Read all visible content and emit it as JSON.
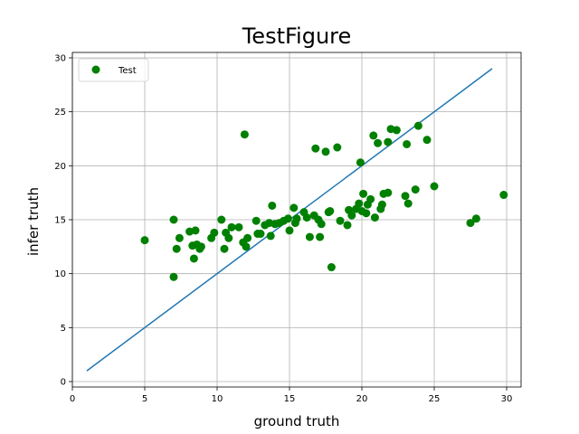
{
  "chart_data": {
    "type": "scatter",
    "title": "TestFigure",
    "xlabel": "ground truth",
    "ylabel": "infer truth",
    "xlim": [
      0,
      31
    ],
    "ylim": [
      -0.5,
      30.5
    ],
    "xticks": [
      0,
      5,
      10,
      15,
      20,
      25,
      30
    ],
    "yticks": [
      0,
      5,
      10,
      15,
      20,
      25,
      30
    ],
    "grid": true,
    "legend_position": "top-left",
    "colors": {
      "points": "#008000",
      "line": "#1f77b4",
      "grid": "#b0b0b0"
    },
    "reference_line": {
      "x": [
        1,
        29
      ],
      "y": [
        1,
        29
      ]
    },
    "series": [
      {
        "name": "Test",
        "x": [
          5.0,
          7.0,
          7.0,
          7.2,
          7.4,
          8.1,
          8.3,
          8.4,
          8.5,
          8.6,
          8.8,
          8.9,
          9.6,
          9.8,
          10.3,
          10.5,
          10.6,
          10.8,
          11.0,
          11.5,
          11.8,
          11.9,
          12.0,
          12.1,
          12.7,
          12.8,
          13.0,
          13.3,
          13.6,
          13.7,
          13.8,
          14.0,
          14.3,
          14.6,
          14.9,
          15.0,
          15.3,
          15.4,
          15.5,
          16.0,
          16.2,
          16.4,
          16.7,
          16.8,
          17.0,
          17.1,
          17.2,
          17.5,
          17.7,
          17.8,
          17.9,
          18.3,
          18.5,
          19.0,
          19.1,
          19.3,
          19.6,
          19.8,
          19.9,
          20.0,
          20.1,
          20.3,
          20.4,
          20.6,
          20.8,
          20.9,
          21.1,
          21.3,
          21.4,
          21.5,
          21.8,
          21.8,
          22.0,
          22.4,
          23.0,
          23.1,
          23.2,
          23.7,
          23.9,
          24.5,
          25.0,
          27.5,
          27.9,
          29.8
        ],
        "y": [
          13.1,
          15.0,
          9.7,
          12.3,
          13.3,
          13.9,
          12.6,
          11.4,
          14.0,
          12.7,
          12.3,
          12.5,
          13.3,
          13.8,
          15.0,
          12.3,
          13.8,
          13.3,
          14.3,
          14.3,
          12.9,
          22.9,
          12.5,
          13.3,
          14.9,
          13.7,
          13.7,
          14.5,
          14.7,
          13.5,
          16.3,
          14.6,
          14.7,
          14.9,
          15.1,
          14.0,
          16.1,
          14.7,
          15.1,
          15.7,
          15.2,
          13.4,
          15.4,
          21.6,
          15.0,
          13.4,
          14.6,
          21.3,
          15.7,
          15.8,
          10.6,
          21.7,
          14.9,
          14.5,
          15.9,
          15.4,
          16.0,
          16.5,
          20.3,
          15.8,
          17.4,
          15.6,
          16.4,
          16.9,
          22.8,
          15.2,
          22.1,
          16.0,
          16.4,
          17.4,
          17.5,
          22.2,
          23.4,
          23.3,
          17.2,
          22.0,
          16.5,
          17.8,
          23.7,
          22.4,
          18.1,
          14.7,
          15.1,
          17.3
        ]
      }
    ]
  }
}
